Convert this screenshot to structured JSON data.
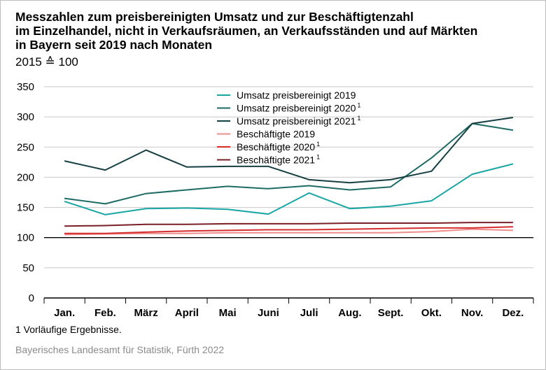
{
  "header": {
    "title_lines": [
      "Messzahlen zum preisbereinigten Umsatz und zur Beschäftigtenzahl",
      "im Einzelhandel, nicht in Verkaufsräumen, an Verkaufsständen und auf Märkten",
      "in Bayern seit 2019 nach Monaten"
    ],
    "subtitle": "2015 ≙ 100"
  },
  "footnote": "1  Vorläufige Ergebnisse.",
  "source": "Bayerisches Landesamt für Statistik, Fürth 2022",
  "chart_data": {
    "type": "line",
    "categories": [
      "Jan.",
      "Feb.",
      "März",
      "April",
      "Mai",
      "Juni",
      "Juli",
      "Aug.",
      "Sept.",
      "Okt.",
      "Nov.",
      "Dez."
    ],
    "ylim": [
      0,
      350
    ],
    "yticks": [
      0,
      50,
      100,
      150,
      200,
      250,
      300,
      350
    ],
    "grid": "horizontal",
    "legend_position": "top-center",
    "series": [
      {
        "name": "Umsatz preisbereinigt 2019",
        "sup": "",
        "color": "#1aa5a5",
        "values": [
          160,
          138,
          148,
          149,
          147,
          139,
          174,
          148,
          152,
          161,
          205,
          222
        ]
      },
      {
        "name": "Umsatz preisbereinigt 2020",
        "sup": "1",
        "color": "#1d6b64",
        "values": [
          165,
          156,
          173,
          179,
          185,
          181,
          186,
          179,
          184,
          232,
          289,
          278
        ]
      },
      {
        "name": "Umsatz preisbereinigt 2021",
        "sup": "1",
        "color": "#163f43",
        "values": [
          227,
          212,
          245,
          217,
          218,
          218,
          196,
          191,
          196,
          210,
          289,
          299
        ]
      },
      {
        "name": "Beschäftigte 2019",
        "sup": "",
        "color": "#ef8c8c",
        "values": [
          105,
          106,
          107,
          107,
          108,
          108,
          108,
          108,
          108,
          110,
          114,
          112
        ]
      },
      {
        "name": "Beschäftigte 2020",
        "sup": "1",
        "color": "#d42d2d",
        "values": [
          107,
          107,
          109,
          111,
          112,
          113,
          113,
          114,
          115,
          116,
          116,
          118
        ]
      },
      {
        "name": "Beschäftigte 2021",
        "sup": "1",
        "color": "#7a1f25",
        "values": [
          119,
          120,
          122,
          122,
          123,
          123,
          123,
          124,
          124,
          124,
          125,
          125
        ]
      }
    ]
  }
}
